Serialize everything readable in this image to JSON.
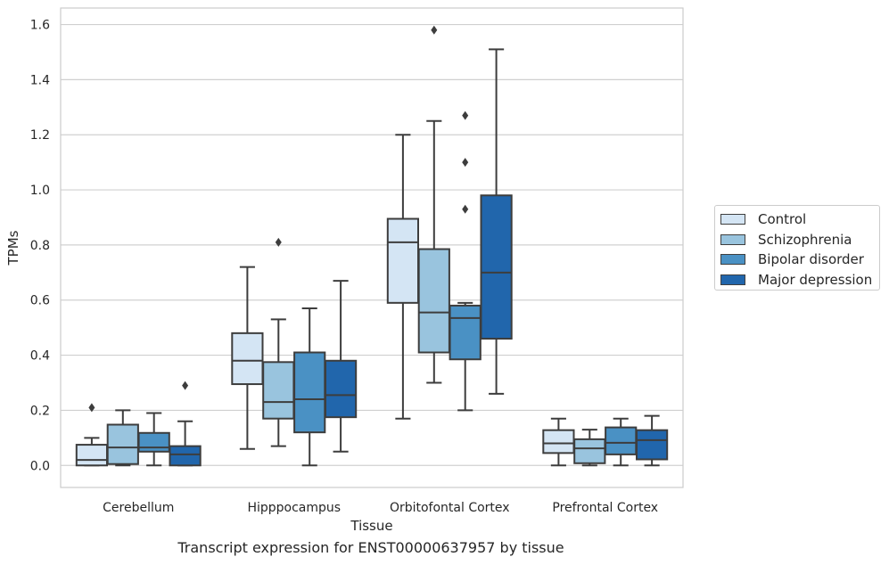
{
  "caption": "Transcript expression for ENST00000637957 by tissue",
  "chart_data": {
    "type": "box",
    "xlabel": "Tissue",
    "ylabel": "TPMs",
    "ylim": [
      -0.08,
      1.66
    ],
    "yticks": [
      0.0,
      0.2,
      0.4,
      0.6,
      0.8,
      1.0,
      1.2,
      1.4,
      1.6
    ],
    "ytick_labels": [
      "0.0",
      "0.2",
      "0.4",
      "0.6",
      "0.8",
      "1.0",
      "1.2",
      "1.4",
      "1.6"
    ],
    "grid": "horizontal",
    "legend_placement": "right",
    "categories": [
      "Cerebellum",
      "Hipppocampus",
      "Orbitofontal Cortex",
      "Prefrontal Cortex"
    ],
    "series": [
      {
        "name": "Control",
        "color": "#d4e5f4",
        "boxes": [
          {
            "whislo": 0.0,
            "q1": 0.0,
            "med": 0.02,
            "q3": 0.075,
            "whishi": 0.1,
            "fliers": [
              0.21
            ]
          },
          {
            "whislo": 0.06,
            "q1": 0.295,
            "med": 0.38,
            "q3": 0.48,
            "whishi": 0.72,
            "fliers": []
          },
          {
            "whislo": 0.17,
            "q1": 0.59,
            "med": 0.81,
            "q3": 0.895,
            "whishi": 1.2,
            "fliers": []
          },
          {
            "whislo": 0.0,
            "q1": 0.045,
            "med": 0.08,
            "q3": 0.128,
            "whishi": 0.17,
            "fliers": []
          }
        ]
      },
      {
        "name": "Schizophrenia",
        "color": "#99c4de",
        "boxes": [
          {
            "whislo": 0.0,
            "q1": 0.005,
            "med": 0.065,
            "q3": 0.148,
            "whishi": 0.2,
            "fliers": []
          },
          {
            "whislo": 0.07,
            "q1": 0.17,
            "med": 0.23,
            "q3": 0.375,
            "whishi": 0.53,
            "fliers": [
              0.81
            ]
          },
          {
            "whislo": 0.3,
            "q1": 0.41,
            "med": 0.555,
            "q3": 0.785,
            "whishi": 1.25,
            "fliers": [
              1.58
            ]
          },
          {
            "whislo": 0.0,
            "q1": 0.008,
            "med": 0.062,
            "q3": 0.095,
            "whishi": 0.13,
            "fliers": []
          }
        ]
      },
      {
        "name": "Bipolar disorder",
        "color": "#4a91c4",
        "boxes": [
          {
            "whislo": 0.0,
            "q1": 0.05,
            "med": 0.065,
            "q3": 0.118,
            "whishi": 0.19,
            "fliers": []
          },
          {
            "whislo": 0.0,
            "q1": 0.12,
            "med": 0.24,
            "q3": 0.41,
            "whishi": 0.57,
            "fliers": []
          },
          {
            "whislo": 0.2,
            "q1": 0.385,
            "med": 0.535,
            "q3": 0.58,
            "whishi": 0.59,
            "fliers": [
              0.93,
              1.1,
              1.27
            ]
          },
          {
            "whislo": 0.0,
            "q1": 0.04,
            "med": 0.082,
            "q3": 0.138,
            "whishi": 0.17,
            "fliers": []
          }
        ]
      },
      {
        "name": "Major depression",
        "color": "#2166ac",
        "boxes": [
          {
            "whislo": 0.0,
            "q1": 0.0,
            "med": 0.04,
            "q3": 0.07,
            "whishi": 0.16,
            "fliers": [
              0.29
            ]
          },
          {
            "whislo": 0.05,
            "q1": 0.175,
            "med": 0.255,
            "q3": 0.38,
            "whishi": 0.67,
            "fliers": []
          },
          {
            "whislo": 0.26,
            "q1": 0.46,
            "med": 0.7,
            "q3": 0.98,
            "whishi": 1.51,
            "fliers": []
          },
          {
            "whislo": 0.0,
            "q1": 0.022,
            "med": 0.092,
            "q3": 0.128,
            "whishi": 0.18,
            "fliers": []
          }
        ]
      }
    ]
  }
}
